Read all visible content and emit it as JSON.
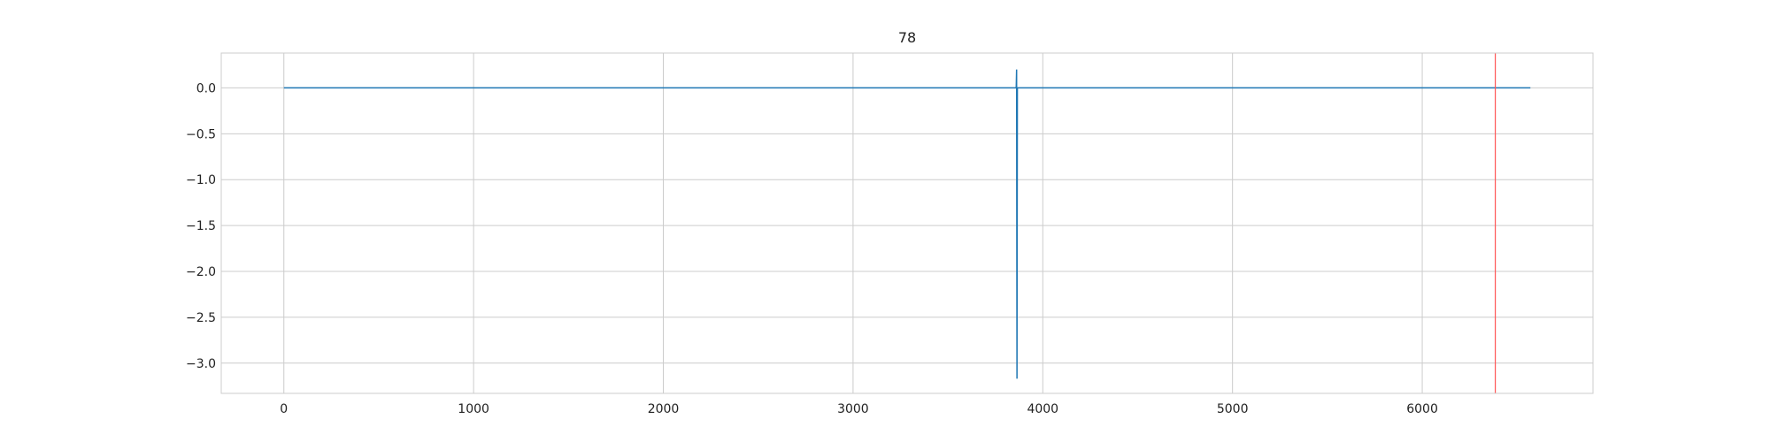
{
  "chart_data": {
    "type": "line",
    "title": "78",
    "xlabel": "",
    "ylabel": "",
    "xlim": [
      -330,
      6900
    ],
    "ylim": [
      -3.33,
      0.38
    ],
    "x_ticks": [
      0,
      1000,
      2000,
      3000,
      4000,
      5000,
      6000
    ],
    "y_ticks": [
      0.0,
      -0.5,
      -1.0,
      -1.5,
      -2.0,
      -2.5,
      -3.0
    ],
    "x_tick_labels": [
      "0",
      "1000",
      "2000",
      "3000",
      "4000",
      "5000",
      "6000"
    ],
    "y_tick_labels": [
      "0.0",
      "−0.5",
      "−1.0",
      "−1.5",
      "−2.0",
      "−2.5",
      "−3.0"
    ],
    "grid": true,
    "series": [
      {
        "color": "#1f77b4",
        "points": [
          [
            0,
            0.0
          ],
          [
            3860,
            0.0
          ],
          [
            3862,
            0.2
          ],
          [
            3864,
            -3.17
          ],
          [
            3866,
            0.0
          ],
          [
            6570,
            0.0
          ]
        ]
      }
    ],
    "vlines": [
      {
        "x": 6385,
        "color": "#ff5555"
      }
    ]
  }
}
